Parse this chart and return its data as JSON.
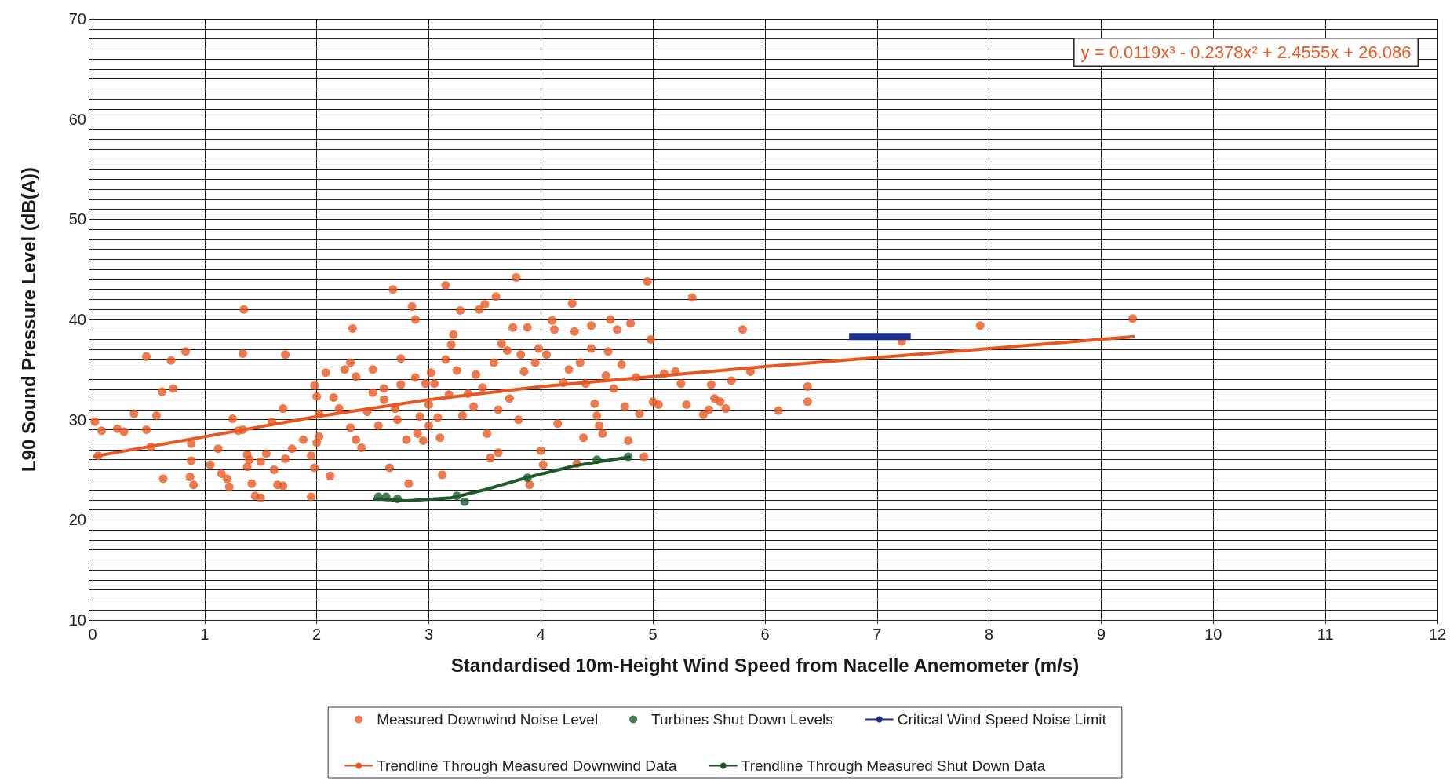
{
  "chart_data": {
    "type": "scatter",
    "xlabel": "Standardised 10m-Height Wind Speed from Nacelle Anemometer (m/s)",
    "ylabel": "L90 Sound Pressure Level (dB(A))",
    "annotations": [
      "y = 0.0119x³ - 0.2378x² + 2.4555x + 26.086"
    ],
    "xlim": [
      0,
      12
    ],
    "xticks": [
      0,
      1,
      2,
      3,
      4,
      5,
      6,
      7,
      8,
      9,
      10,
      11,
      12
    ],
    "ylim": [
      10,
      70
    ],
    "yticks": [
      10,
      {
        "value": 11,
        "label": null
      },
      {
        "value": 12,
        "label": null
      },
      {
        "value": 13,
        "label": null
      },
      {
        "value": 14,
        "label": null
      },
      {
        "value": 15,
        "label": null
      },
      {
        "value": 16,
        "label": null
      },
      {
        "value": 17,
        "label": null
      },
      {
        "value": 18,
        "label": null
      },
      {
        "value": 19,
        "label": null
      },
      20,
      {
        "value": 21,
        "label": null
      },
      {
        "value": 22,
        "label": null
      },
      {
        "value": 23,
        "label": null
      },
      {
        "value": 24,
        "label": null
      },
      {
        "value": 25,
        "label": null
      },
      {
        "value": 26,
        "label": null
      },
      {
        "value": 27,
        "label": null
      },
      {
        "value": 28,
        "label": null
      },
      {
        "value": 29,
        "label": null
      },
      30,
      {
        "value": 31,
        "label": null
      },
      {
        "value": 32,
        "label": null
      },
      {
        "value": 33,
        "label": null
      },
      {
        "value": 34,
        "label": null
      },
      {
        "value": 35,
        "label": null
      },
      {
        "value": 36,
        "label": null
      },
      {
        "value": 37,
        "label": null
      },
      {
        "value": 38,
        "label": null
      },
      {
        "value": 39,
        "label": null
      },
      40,
      {
        "value": 41,
        "label": null
      },
      {
        "value": 42,
        "label": null
      },
      {
        "value": 43,
        "label": null
      },
      {
        "value": 44,
        "label": null
      },
      {
        "value": 45,
        "label": null
      },
      {
        "value": 46,
        "label": null
      },
      {
        "value": 47,
        "label": null
      },
      {
        "value": 48,
        "label": null
      },
      {
        "value": 49,
        "label": null
      },
      50,
      {
        "value": 51,
        "label": null
      },
      {
        "value": 52,
        "label": null
      },
      {
        "value": 53,
        "label": null
      },
      {
        "value": 54,
        "label": null
      },
      {
        "value": 55,
        "label": null
      },
      {
        "value": 56,
        "label": null
      },
      {
        "value": 57,
        "label": null
      },
      {
        "value": 58,
        "label": null
      },
      {
        "value": 59,
        "label": null
      },
      60,
      {
        "value": 61,
        "label": null
      },
      {
        "value": 62,
        "label": null
      },
      {
        "value": 63,
        "label": null
      },
      {
        "value": 64,
        "label": null
      },
      {
        "value": 65,
        "label": null
      },
      {
        "value": 66,
        "label": null
      },
      {
        "value": 67,
        "label": null
      },
      {
        "value": 68,
        "label": null
      },
      {
        "value": 69,
        "label": null
      },
      70
    ],
    "grid": true,
    "legend": "bottom",
    "marker": "circle",
    "series": [
      {
        "name": "Measured Downwind Noise Level",
        "color": "#e8571f",
        "x": [
          0.02,
          0.05,
          0.08,
          0.22,
          0.28,
          0.37,
          0.48,
          0.48,
          0.52,
          0.57,
          0.62,
          0.63,
          0.7,
          0.72,
          0.83,
          0.87,
          0.88,
          0.88,
          0.9,
          1.05,
          1.12,
          1.15,
          1.2,
          1.22,
          1.25,
          1.3,
          1.34,
          1.34,
          1.35,
          1.38,
          1.38,
          1.4,
          1.42,
          1.45,
          1.5,
          1.5,
          1.55,
          1.6,
          1.62,
          1.65,
          1.7,
          1.7,
          1.72,
          1.72,
          1.78,
          1.88,
          1.95,
          1.95,
          1.98,
          1.98,
          2.0,
          2.0,
          2.02,
          2.02,
          2.08,
          2.12,
          2.15,
          2.2,
          2.25,
          2.3,
          2.3,
          2.32,
          2.35,
          2.35,
          2.4,
          2.45,
          2.5,
          2.5,
          2.55,
          2.6,
          2.6,
          2.65,
          2.68,
          2.7,
          2.72,
          2.75,
          2.75,
          2.8,
          2.82,
          2.85,
          2.88,
          2.88,
          2.9,
          2.92,
          2.95,
          2.97,
          3.0,
          3.0,
          3.02,
          3.05,
          3.08,
          3.1,
          3.12,
          3.15,
          3.15,
          3.18,
          3.2,
          3.22,
          3.25,
          3.28,
          3.3,
          3.35,
          3.4,
          3.42,
          3.45,
          3.48,
          3.5,
          3.52,
          3.55,
          3.58,
          3.6,
          3.62,
          3.62,
          3.65,
          3.7,
          3.72,
          3.75,
          3.78,
          3.8,
          3.82,
          3.85,
          3.88,
          3.9,
          3.95,
          3.98,
          4.0,
          4.02,
          4.05,
          4.1,
          4.12,
          4.15,
          4.2,
          4.25,
          4.28,
          4.3,
          4.32,
          4.35,
          4.38,
          4.4,
          4.45,
          4.45,
          4.48,
          4.5,
          4.52,
          4.55,
          4.58,
          4.6,
          4.62,
          4.65,
          4.68,
          4.72,
          4.75,
          4.78,
          4.8,
          4.85,
          4.88,
          4.92,
          4.95,
          4.98,
          5.0,
          5.05,
          5.1,
          5.2,
          5.25,
          5.3,
          5.35,
          5.45,
          5.5,
          5.52,
          5.55,
          5.6,
          5.65,
          5.7,
          5.8,
          5.87,
          6.12,
          6.38,
          6.38,
          7.22,
          7.92,
          9.28
        ],
        "values": [
          29.8,
          26.4,
          28.9,
          29.1,
          28.8,
          30.6,
          29.0,
          36.3,
          27.3,
          30.4,
          32.8,
          24.1,
          35.9,
          33.1,
          36.8,
          24.3,
          25.9,
          27.6,
          23.5,
          25.5,
          27.1,
          24.6,
          24.1,
          23.3,
          30.1,
          28.9,
          36.6,
          29.0,
          41.0,
          26.5,
          25.3,
          26.0,
          23.6,
          22.4,
          22.2,
          25.8,
          26.6,
          29.8,
          25.0,
          23.5,
          31.1,
          23.4,
          36.5,
          26.1,
          27.1,
          28.0,
          22.3,
          26.4,
          25.2,
          33.4,
          32.3,
          27.7,
          30.6,
          28.3,
          34.7,
          24.4,
          32.2,
          31.1,
          35.0,
          35.7,
          29.2,
          39.1,
          28.0,
          34.3,
          27.2,
          30.8,
          35.0,
          32.7,
          29.4,
          33.1,
          32.0,
          25.2,
          43.0,
          31.1,
          30.0,
          36.1,
          33.5,
          28.0,
          23.6,
          41.3,
          40.0,
          34.2,
          28.6,
          30.3,
          27.9,
          33.6,
          31.5,
          29.4,
          34.7,
          33.6,
          30.2,
          28.2,
          24.5,
          43.4,
          36.0,
          32.5,
          37.5,
          38.5,
          34.9,
          40.9,
          30.4,
          32.6,
          31.3,
          34.5,
          41.0,
          33.2,
          41.5,
          28.6,
          26.2,
          35.7,
          42.3,
          31.0,
          26.7,
          37.6,
          36.9,
          32.1,
          39.2,
          44.2,
          30.0,
          36.5,
          34.8,
          39.2,
          23.5,
          35.7,
          37.1,
          26.9,
          25.5,
          36.5,
          39.9,
          39.0,
          29.6,
          33.7,
          35.0,
          41.6,
          38.8,
          25.6,
          35.7,
          28.2,
          33.6,
          37.1,
          39.4,
          31.6,
          30.4,
          29.4,
          28.6,
          34.4,
          36.8,
          40.0,
          33.1,
          39.0,
          35.5,
          31.3,
          27.9,
          39.6,
          34.2,
          30.6,
          26.3,
          43.8,
          38.0,
          31.8,
          31.5,
          34.6,
          34.8,
          33.6,
          31.5,
          42.2,
          30.5,
          31.0,
          33.5,
          32.1,
          31.8,
          31.1,
          33.9,
          39.0,
          34.8,
          30.9,
          33.3,
          31.8,
          37.8,
          39.4,
          40.1
        ]
      },
      {
        "name": "Turbines Shut Down Levels",
        "color": "#1e5a2a",
        "x": [
          2.55,
          2.62,
          2.72,
          3.25,
          3.32,
          3.88,
          4.5,
          4.78
        ],
        "values": [
          22.3,
          22.3,
          22.1,
          22.4,
          21.8,
          24.2,
          26.0,
          26.3
        ]
      },
      {
        "name": "Critical Wind Speed Noise Limit",
        "type": "line",
        "color": "#1a2f8f",
        "marker": "none",
        "x": [
          6.75,
          7.3
        ],
        "values": [
          38.3,
          38.3
        ]
      },
      {
        "name": "Trendline Through Measured Downwind Data",
        "type": "line",
        "color": "#e8571f",
        "marker": "none",
        "x": [
          0,
          1,
          2,
          3,
          4,
          5,
          6,
          7,
          8,
          9.3
        ],
        "values": [
          26.3,
          28.3,
          30.3,
          32.0,
          33.3,
          34.3,
          35.3,
          36.2,
          37.1,
          38.3
        ]
      },
      {
        "name": "Trendline Through Measured Shut Down Data",
        "type": "line",
        "color": "#1e5a2a",
        "marker": "none",
        "x": [
          2.5,
          2.8,
          3.2,
          3.5,
          3.9,
          4.3,
          4.8
        ],
        "values": [
          22.1,
          21.9,
          22.2,
          23.0,
          24.3,
          25.4,
          26.3
        ]
      }
    ]
  }
}
